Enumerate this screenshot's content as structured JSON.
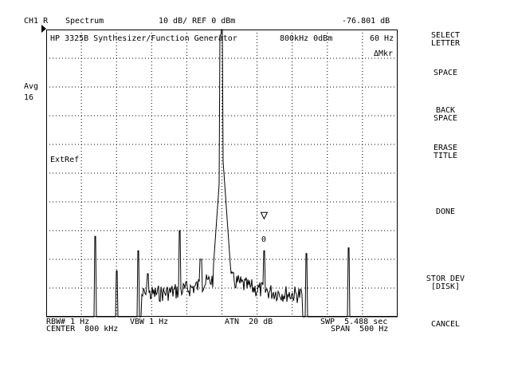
{
  "header": {
    "channel": "CH1 R",
    "measurement": "Spectrum",
    "scale": "10 dB/ REF 0 dBm",
    "readout": "-76.801 dB"
  },
  "title_line": {
    "title": "HP 3325B Synthesizer/Function Generator",
    "signal": "800kHz 0dBm",
    "marker_freq": "60 Hz",
    "delta_marker": "ΔMkr"
  },
  "left": {
    "avg_label": "Avg",
    "avg_count": "16"
  },
  "screen": {
    "ext_ref": "ExtRef",
    "marker_label": "0"
  },
  "footer": {
    "rbw": "RBW# 1 Hz",
    "vbw": "VBW 1 Hz",
    "atn": "ATN  20 dB",
    "swp": "SWP  5.488 sec",
    "center": "CENTER  800 kHz",
    "span": "SPAN  500 Hz"
  },
  "softkeys": [
    {
      "line1": "SELECT",
      "line2": "LETTER"
    },
    {
      "line1": "SPACE",
      "line2": ""
    },
    {
      "line1": "BACK",
      "line2": "SPACE"
    },
    {
      "line1": "ERASE",
      "line2": "TITLE"
    },
    {
      "line1": "DONE",
      "line2": ""
    },
    {
      "line1": "STOR DEV",
      "line2": "[DISK]"
    },
    {
      "line1": "CANCEL",
      "line2": ""
    }
  ],
  "chart_data": {
    "type": "line",
    "x_center_khz": 800,
    "span_hz": 500,
    "ref_level_dbm": 0,
    "scale_db_per_div": 10,
    "grid": true,
    "divisions_x": 10,
    "divisions_y": 10,
    "noise_floor_dbm": -85,
    "peaks": [
      {
        "offset_hz": -180,
        "level_dbm": -72
      },
      {
        "offset_hz": -150,
        "level_dbm": -84
      },
      {
        "offset_hz": -119,
        "level_dbm": -77
      },
      {
        "offset_hz": -105,
        "level_dbm": -85
      },
      {
        "offset_hz": -60,
        "level_dbm": -70
      },
      {
        "offset_hz": -30,
        "level_dbm": -80
      },
      {
        "offset_hz": -2,
        "level_dbm": -2
      },
      {
        "offset_hz": 0,
        "level_dbm": 0
      },
      {
        "offset_hz": 60,
        "level_dbm": -77
      },
      {
        "offset_hz": 120,
        "level_dbm": -78
      },
      {
        "offset_hz": 180,
        "level_dbm": -76
      }
    ]
  }
}
